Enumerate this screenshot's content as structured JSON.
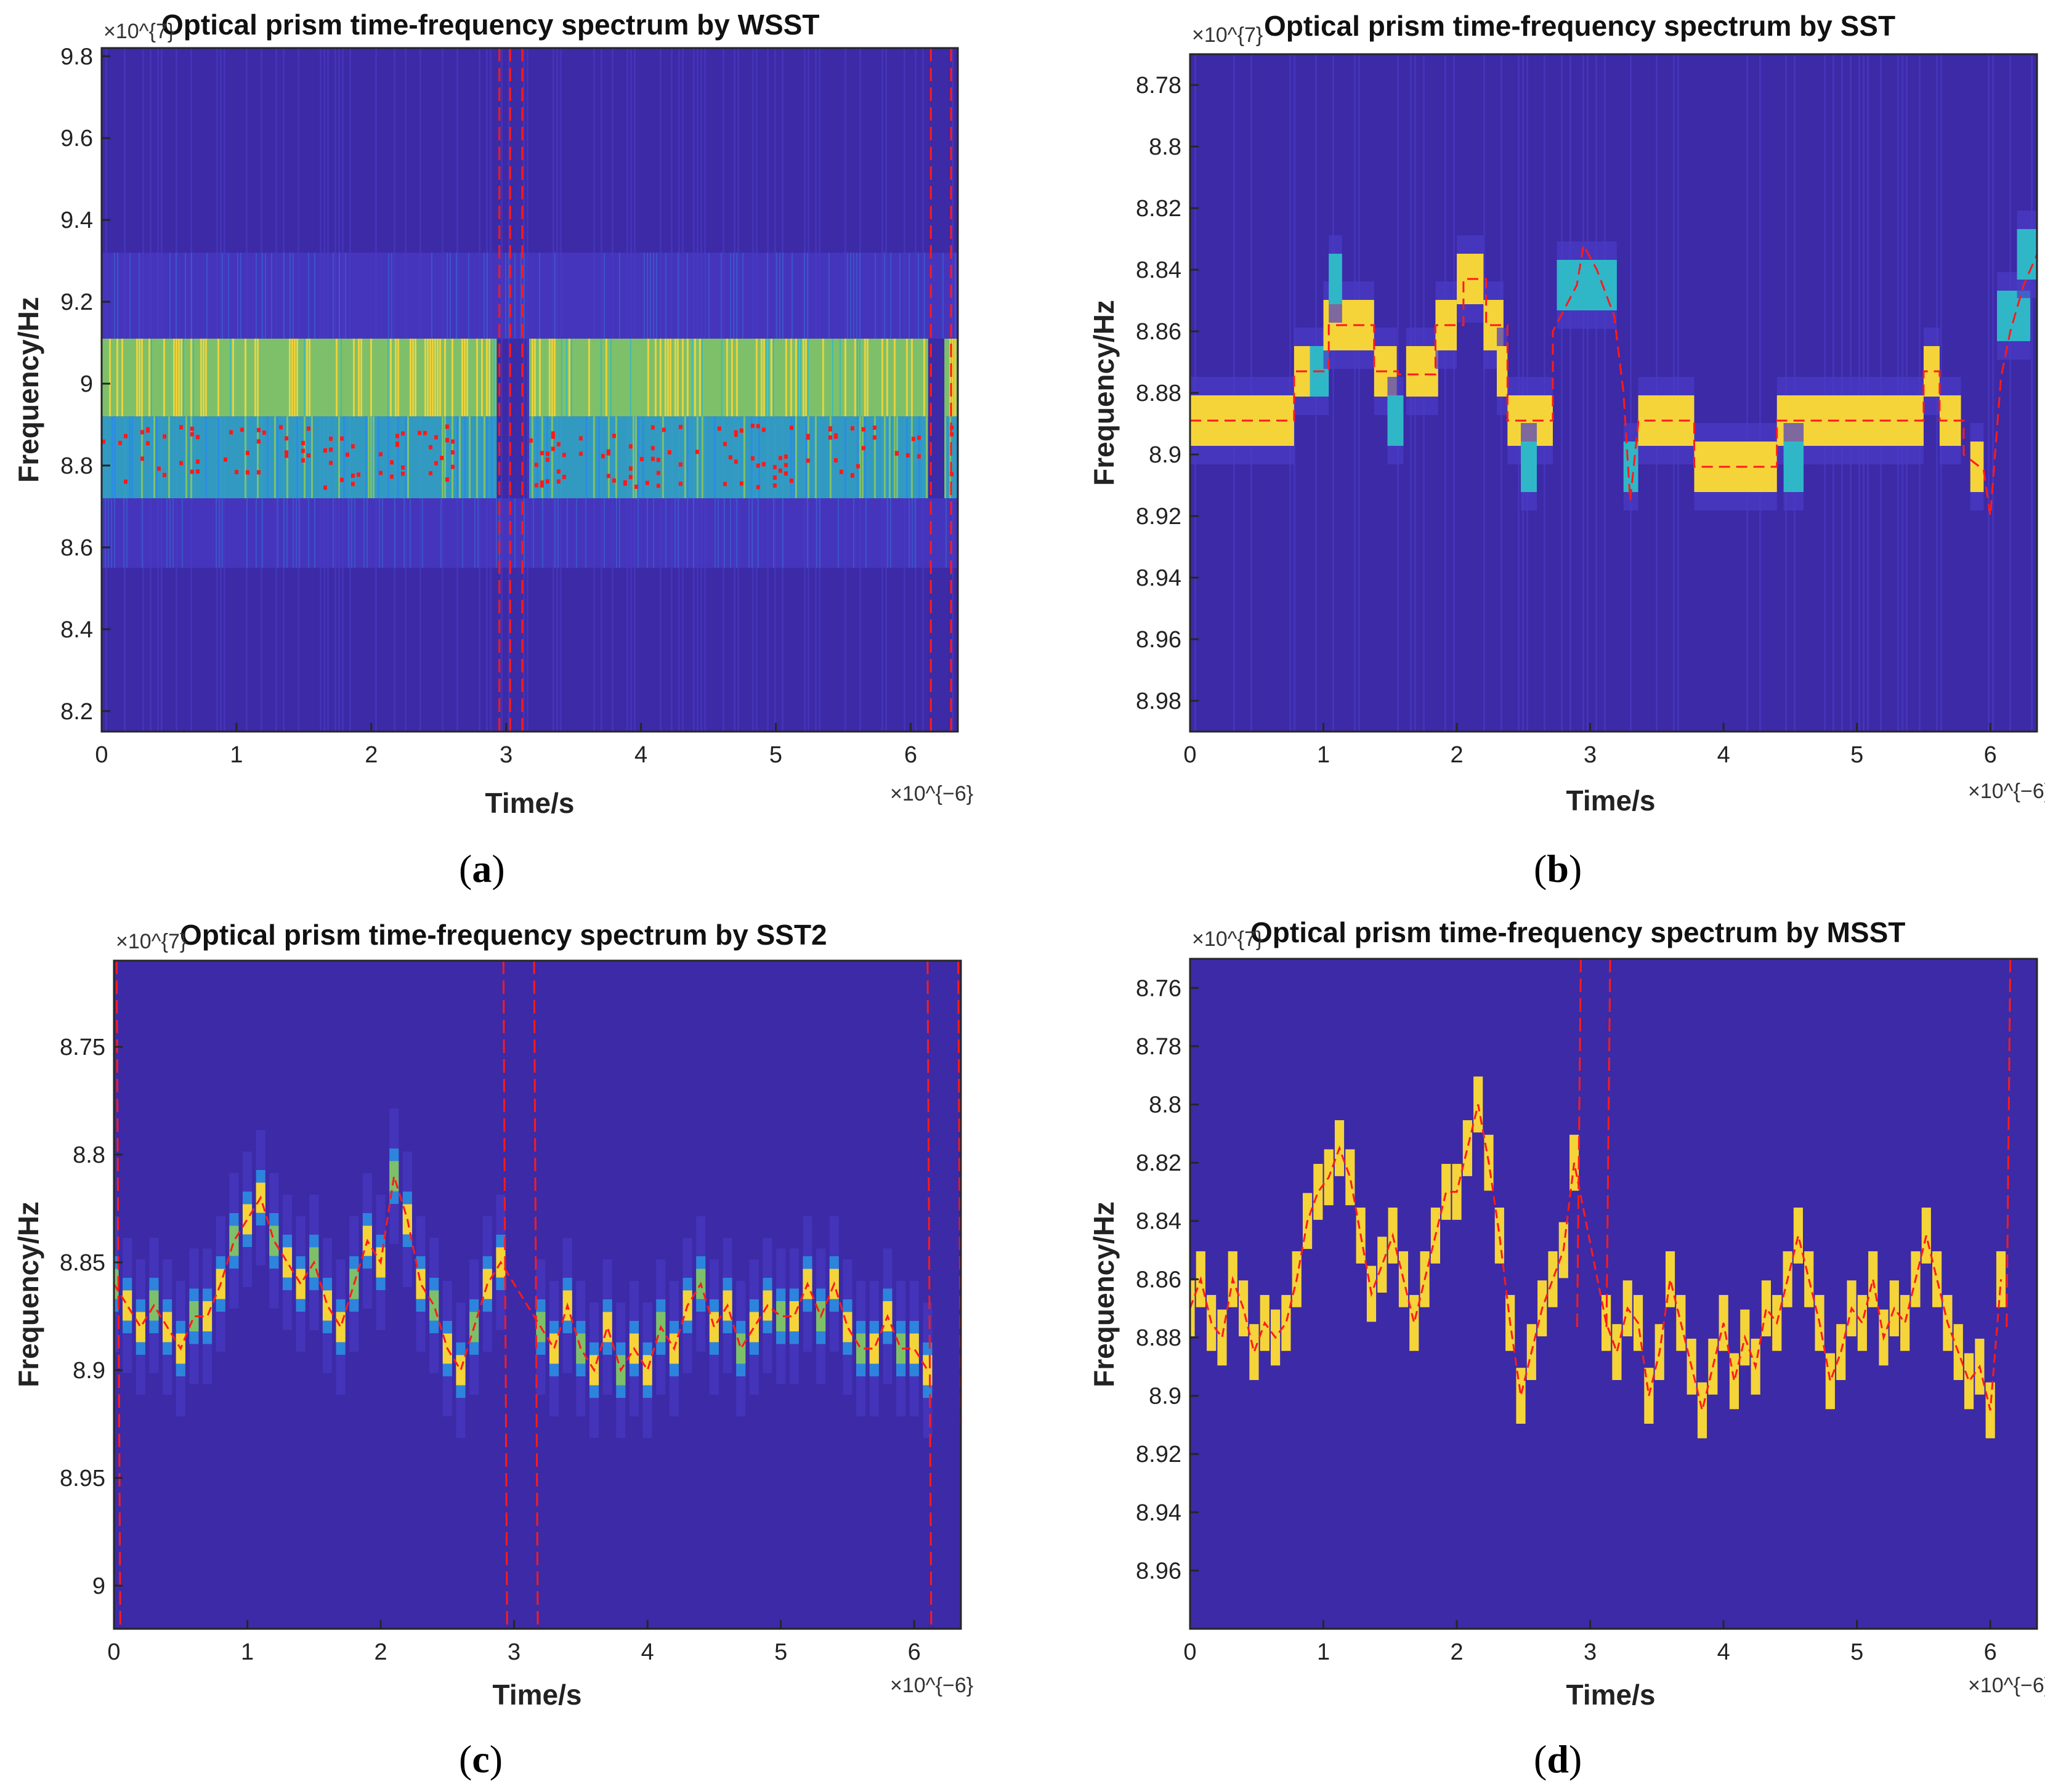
{
  "figure": {
    "colors": {
      "background": "#3c2aa6",
      "stripe": "#4a3cc8",
      "mid": "#2b8de0",
      "cyan": "#2fb7c8",
      "green": "#7ec06a",
      "yellow": "#f5d43a",
      "ridge": "#ff1a1a",
      "axis": "#262626"
    }
  },
  "chart_data": [
    {
      "panel": "a",
      "type": "heatmap",
      "title": "Optical prism time-frequency spectrum by WSST",
      "xlabel": "Time/s",
      "ylabel": "Frequency/Hz",
      "x_exponent": "×10^{−6}",
      "y_exponent": "×10^{7}",
      "xlim": [
        0,
        6.35
      ],
      "ylim": [
        8.15,
        9.82
      ],
      "y_direction": "normal",
      "xticks": [
        0,
        1,
        2,
        3,
        4,
        5,
        6
      ],
      "xtick_labels": [
        "0",
        "1",
        "2",
        "3",
        "4",
        "5",
        "6"
      ],
      "yticks": [
        8.2,
        8.4,
        8.6,
        8.8,
        9.0,
        9.2,
        9.4,
        9.6,
        9.8
      ],
      "ytick_labels": [
        "8.2",
        "8.4",
        "8.6",
        "8.8",
        "9",
        "9.2",
        "9.4",
        "9.6",
        "9.8"
      ],
      "caption": "a",
      "bands": [
        {
          "f0": 8.92,
          "f1": 9.11,
          "level": "green-yellow",
          "segments": [
            [
              0,
              2.93
            ],
            [
              3.17,
              6.13
            ],
            [
              6.25,
              6.35
            ]
          ]
        },
        {
          "f0": 8.72,
          "f1": 8.92,
          "level": "cyan-red",
          "segments": [
            [
              0,
              2.93
            ],
            [
              3.17,
              6.13
            ],
            [
              6.25,
              6.35
            ]
          ]
        },
        {
          "f0": 9.11,
          "f1": 9.32,
          "level": "blue",
          "segments": [
            [
              0,
              6.35
            ]
          ]
        },
        {
          "f0": 8.55,
          "f1": 8.72,
          "level": "blue",
          "segments": [
            [
              0,
              6.35
            ]
          ]
        }
      ],
      "ridge_verticals": [
        0.0,
        2.95,
        3.03,
        3.12,
        6.15,
        6.3
      ]
    },
    {
      "panel": "b",
      "type": "heatmap",
      "title": "Optical prism time-frequency spectrum by SST",
      "xlabel": "Time/s",
      "ylabel": "Frequency/Hz",
      "x_exponent": "×10^{−6}",
      "y_exponent": "×10^{7}",
      "xlim": [
        0,
        6.35
      ],
      "ylim": [
        8.77,
        8.99
      ],
      "y_direction": "reverse",
      "xticks": [
        0,
        1,
        2,
        3,
        4,
        5,
        6
      ],
      "xtick_labels": [
        "0",
        "1",
        "2",
        "3",
        "4",
        "5",
        "6"
      ],
      "yticks": [
        8.78,
        8.8,
        8.82,
        8.84,
        8.86,
        8.88,
        8.9,
        8.92,
        8.94,
        8.96,
        8.98
      ],
      "ytick_labels": [
        "8.78",
        "8.8",
        "8.82",
        "8.84",
        "8.86",
        "8.88",
        "8.9",
        "8.92",
        "8.94",
        "8.96",
        "8.98"
      ],
      "caption": "b",
      "ridge": {
        "t": [
          0,
          0.78,
          0.78,
          1.04,
          1.04,
          1.38,
          1.38,
          1.56,
          1.56,
          1.84,
          1.84,
          2.05,
          2.05,
          2.22,
          2.22,
          2.38,
          2.38,
          2.72,
          2.72,
          2.9,
          2.95,
          3.05,
          3.18,
          3.25,
          3.3,
          3.36,
          3.36,
          3.78,
          3.78,
          4.4,
          4.4,
          5.5,
          5.5,
          5.62,
          5.62,
          5.8,
          5.8,
          5.95,
          6.0,
          6.08,
          6.15,
          6.25,
          6.35
        ],
        "f": [
          8.889,
          8.889,
          8.873,
          8.873,
          8.858,
          8.858,
          8.873,
          8.873,
          8.874,
          8.874,
          8.858,
          8.858,
          8.843,
          8.843,
          8.858,
          8.858,
          8.889,
          8.889,
          8.86,
          8.845,
          8.832,
          8.84,
          8.855,
          8.88,
          8.915,
          8.89,
          8.889,
          8.889,
          8.904,
          8.904,
          8.889,
          8.889,
          8.873,
          8.873,
          8.889,
          8.889,
          8.9,
          8.905,
          8.92,
          8.875,
          8.86,
          8.845,
          8.835
        ]
      },
      "blocks": [
        {
          "t0": 0,
          "t1": 0.78,
          "f": 8.889,
          "level": "yellow"
        },
        {
          "t0": 0.78,
          "t1": 0.9,
          "f": 8.873,
          "level": "yellow"
        },
        {
          "t0": 0.9,
          "t1": 1.04,
          "f": 8.873,
          "level": "cyan"
        },
        {
          "t0": 1.0,
          "t1": 1.38,
          "f": 8.858,
          "level": "yellow"
        },
        {
          "t0": 1.04,
          "t1": 1.14,
          "f": 8.843,
          "level": "cyan"
        },
        {
          "t0": 1.38,
          "t1": 1.55,
          "f": 8.873,
          "level": "yellow"
        },
        {
          "t0": 1.48,
          "t1": 1.6,
          "f": 8.889,
          "level": "cyan"
        },
        {
          "t0": 1.62,
          "t1": 1.86,
          "f": 8.873,
          "level": "yellow"
        },
        {
          "t0": 1.84,
          "t1": 2.0,
          "f": 8.858,
          "level": "yellow"
        },
        {
          "t0": 2.0,
          "t1": 2.2,
          "f": 8.843,
          "level": "yellow"
        },
        {
          "t0": 2.2,
          "t1": 2.35,
          "f": 8.858,
          "level": "yellow"
        },
        {
          "t0": 2.3,
          "t1": 2.38,
          "f": 8.873,
          "level": "yellow"
        },
        {
          "t0": 2.38,
          "t1": 2.72,
          "f": 8.889,
          "level": "yellow"
        },
        {
          "t0": 2.48,
          "t1": 2.6,
          "f": 8.904,
          "level": "cyan"
        },
        {
          "t0": 2.75,
          "t1": 3.2,
          "f": 8.845,
          "level": "cyan"
        },
        {
          "t0": 3.25,
          "t1": 3.36,
          "f": 8.904,
          "level": "cyan"
        },
        {
          "t0": 3.36,
          "t1": 3.78,
          "f": 8.889,
          "level": "yellow"
        },
        {
          "t0": 3.78,
          "t1": 4.4,
          "f": 8.904,
          "level": "yellow"
        },
        {
          "t0": 4.4,
          "t1": 5.5,
          "f": 8.889,
          "level": "yellow"
        },
        {
          "t0": 4.45,
          "t1": 4.6,
          "f": 8.904,
          "level": "cyan"
        },
        {
          "t0": 5.5,
          "t1": 5.62,
          "f": 8.873,
          "level": "yellow"
        },
        {
          "t0": 5.62,
          "t1": 5.78,
          "f": 8.889,
          "level": "yellow"
        },
        {
          "t0": 5.85,
          "t1": 5.95,
          "f": 8.904,
          "level": "yellow"
        },
        {
          "t0": 6.05,
          "t1": 6.3,
          "f": 8.855,
          "level": "cyan"
        },
        {
          "t0": 6.2,
          "t1": 6.35,
          "f": 8.835,
          "level": "cyan"
        }
      ]
    },
    {
      "panel": "c",
      "type": "heatmap",
      "title": "Optical prism time-frequency spectrum by SST2",
      "xlabel": "Time/s",
      "ylabel": "Frequency/Hz",
      "x_exponent": "×10^{−6}",
      "y_exponent": "×10^{7}",
      "xlim": [
        0,
        6.35
      ],
      "ylim": [
        8.71,
        9.02
      ],
      "y_direction": "reverse",
      "xticks": [
        0,
        1,
        2,
        3,
        4,
        5,
        6
      ],
      "xtick_labels": [
        "0",
        "1",
        "2",
        "3",
        "4",
        "5",
        "6"
      ],
      "yticks": [
        8.75,
        8.8,
        8.85,
        8.9,
        8.95,
        9.0
      ],
      "ytick_labels": [
        "8.75",
        "8.8",
        "8.85",
        "8.9",
        "8.95",
        "9"
      ],
      "caption": "c",
      "ridge": {
        "t": [
          0,
          0.1,
          0.2,
          0.3,
          0.4,
          0.5,
          0.6,
          0.7,
          0.8,
          0.9,
          1.0,
          1.1,
          1.2,
          1.3,
          1.4,
          1.5,
          1.6,
          1.7,
          1.8,
          1.9,
          2.0,
          2.1,
          2.2,
          2.3,
          2.4,
          2.5,
          2.6,
          2.7,
          2.8,
          2.9,
          3.2,
          3.3,
          3.4,
          3.5,
          3.6,
          3.7,
          3.8,
          3.9,
          4.0,
          4.1,
          4.2,
          4.3,
          4.4,
          4.5,
          4.6,
          4.7,
          4.8,
          4.9,
          5.0,
          5.1,
          5.2,
          5.3,
          5.4,
          5.5,
          5.6,
          5.7,
          5.8,
          5.9,
          6.0,
          6.1
        ],
        "f": [
          8.86,
          8.87,
          8.88,
          8.87,
          8.88,
          8.89,
          8.875,
          8.875,
          8.86,
          8.84,
          8.83,
          8.82,
          8.84,
          8.85,
          8.86,
          8.85,
          8.87,
          8.88,
          8.86,
          8.84,
          8.85,
          8.81,
          8.83,
          8.86,
          8.87,
          8.89,
          8.9,
          8.88,
          8.86,
          8.85,
          8.88,
          8.89,
          8.87,
          8.89,
          8.9,
          8.88,
          8.9,
          8.89,
          8.9,
          8.88,
          8.89,
          8.87,
          8.86,
          8.88,
          8.87,
          8.89,
          8.88,
          8.87,
          8.875,
          8.875,
          8.86,
          8.875,
          8.86,
          8.88,
          8.89,
          8.89,
          8.875,
          8.89,
          8.89,
          8.9
        ]
      },
      "ridge_verticals": [
        0.02,
        2.92,
        3.15,
        6.1,
        6.33
      ]
    },
    {
      "panel": "d",
      "type": "heatmap",
      "title": "Optical prism time-frequency spectrum by MSST",
      "xlabel": "Time/s",
      "ylabel": "Frequency/Hz",
      "x_exponent": "×10^{−6}",
      "y_exponent": "×10^{7}",
      "xlim": [
        0,
        6.35
      ],
      "ylim": [
        8.75,
        8.98
      ],
      "y_direction": "reverse",
      "xticks": [
        0,
        1,
        2,
        3,
        4,
        5,
        6
      ],
      "xtick_labels": [
        "0",
        "1",
        "2",
        "3",
        "4",
        "5",
        "6"
      ],
      "yticks": [
        8.76,
        8.78,
        8.8,
        8.82,
        8.84,
        8.86,
        8.88,
        8.9,
        8.92,
        8.94,
        8.96
      ],
      "ytick_labels": [
        "8.76",
        "8.78",
        "8.8",
        "8.82",
        "8.84",
        "8.86",
        "8.88",
        "8.9",
        "8.92",
        "8.94",
        "8.96"
      ],
      "caption": "d",
      "ridge": {
        "t": [
          0,
          0.08,
          0.16,
          0.24,
          0.32,
          0.4,
          0.48,
          0.56,
          0.64,
          0.72,
          0.8,
          0.88,
          0.96,
          1.04,
          1.12,
          1.2,
          1.28,
          1.36,
          1.44,
          1.52,
          1.6,
          1.68,
          1.76,
          1.84,
          1.92,
          2.0,
          2.08,
          2.16,
          2.24,
          2.32,
          2.4,
          2.48,
          2.56,
          2.64,
          2.72,
          2.8,
          2.88,
          3.12,
          3.2,
          3.28,
          3.36,
          3.44,
          3.52,
          3.6,
          3.68,
          3.76,
          3.84,
          3.92,
          4.0,
          4.08,
          4.16,
          4.24,
          4.32,
          4.4,
          4.48,
          4.56,
          4.64,
          4.72,
          4.8,
          4.88,
          4.96,
          5.04,
          5.12,
          5.2,
          5.28,
          5.36,
          5.44,
          5.52,
          5.6,
          5.68,
          5.76,
          5.84,
          5.92,
          6.0,
          6.08
        ],
        "f": [
          8.87,
          8.86,
          8.875,
          8.88,
          8.86,
          8.87,
          8.885,
          8.875,
          8.88,
          8.875,
          8.86,
          8.84,
          8.83,
          8.825,
          8.815,
          8.825,
          8.845,
          8.865,
          8.855,
          8.845,
          8.86,
          8.875,
          8.86,
          8.845,
          8.83,
          8.83,
          8.815,
          8.8,
          8.82,
          8.845,
          8.875,
          8.9,
          8.885,
          8.87,
          8.86,
          8.85,
          8.82,
          8.875,
          8.885,
          8.87,
          8.875,
          8.9,
          8.885,
          8.86,
          8.875,
          8.89,
          8.905,
          8.89,
          8.875,
          8.895,
          8.88,
          8.89,
          8.87,
          8.875,
          8.86,
          8.845,
          8.86,
          8.875,
          8.895,
          8.885,
          8.87,
          8.875,
          8.86,
          8.88,
          8.87,
          8.875,
          8.86,
          8.845,
          8.86,
          8.875,
          8.885,
          8.895,
          8.89,
          8.905,
          8.86
        ],
        "block_halfwidth_t": 0.035,
        "block_halfheight_f": 0.006
      },
      "ridge_verticals": [
        2.93,
        3.15,
        6.15
      ]
    }
  ]
}
